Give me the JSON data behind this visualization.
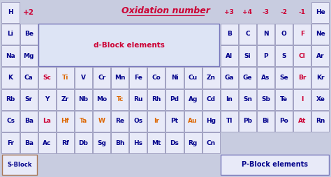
{
  "title": "Oxidation number",
  "bg_color": "#c8cce0",
  "cell_bg": "#e8eaf8",
  "cell_edge": "#9999bb",
  "title_color": "#cc0033",
  "oxidation_color": "#cc0033",
  "dark_blue": "#00008B",
  "orange": "#dd6600",
  "red_elem": "#cc0033",
  "rows": [
    [
      {
        "symbol": "H",
        "col": 0,
        "color": "#00008B"
      },
      {
        "symbol": "He",
        "col": 17,
        "color": "#00008B"
      }
    ],
    [
      {
        "symbol": "Li",
        "col": 0,
        "color": "#00008B"
      },
      {
        "symbol": "Be",
        "col": 1,
        "color": "#00008B"
      },
      {
        "symbol": "B",
        "col": 12,
        "color": "#00008B"
      },
      {
        "symbol": "C",
        "col": 13,
        "color": "#00008B"
      },
      {
        "symbol": "N",
        "col": 14,
        "color": "#00008B"
      },
      {
        "symbol": "O",
        "col": 15,
        "color": "#00008B"
      },
      {
        "symbol": "F",
        "col": 16,
        "color": "#cc0033"
      },
      {
        "symbol": "Ne",
        "col": 17,
        "color": "#00008B"
      }
    ],
    [
      {
        "symbol": "Na",
        "col": 0,
        "color": "#00008B"
      },
      {
        "symbol": "Mg",
        "col": 1,
        "color": "#00008B"
      },
      {
        "symbol": "Al",
        "col": 12,
        "color": "#00008B"
      },
      {
        "symbol": "Si",
        "col": 13,
        "color": "#00008B"
      },
      {
        "symbol": "P",
        "col": 14,
        "color": "#00008B"
      },
      {
        "symbol": "S",
        "col": 15,
        "color": "#00008B"
      },
      {
        "symbol": "Cl",
        "col": 16,
        "color": "#cc0033"
      },
      {
        "symbol": "Ar",
        "col": 17,
        "color": "#00008B"
      }
    ],
    [
      {
        "symbol": "K",
        "col": 0,
        "color": "#00008B"
      },
      {
        "symbol": "Ca",
        "col": 1,
        "color": "#00008B"
      },
      {
        "symbol": "Sc",
        "col": 2,
        "color": "#cc0033"
      },
      {
        "symbol": "Ti",
        "col": 3,
        "color": "#dd6600"
      },
      {
        "symbol": "V",
        "col": 4,
        "color": "#00008B"
      },
      {
        "symbol": "Cr",
        "col": 5,
        "color": "#00008B"
      },
      {
        "symbol": "Mn",
        "col": 6,
        "color": "#00008B"
      },
      {
        "symbol": "Fe",
        "col": 7,
        "color": "#00008B"
      },
      {
        "symbol": "Co",
        "col": 8,
        "color": "#00008B"
      },
      {
        "symbol": "Ni",
        "col": 9,
        "color": "#00008B"
      },
      {
        "symbol": "Cu",
        "col": 10,
        "color": "#00008B"
      },
      {
        "symbol": "Zn",
        "col": 11,
        "color": "#00008B"
      },
      {
        "symbol": "Ga",
        "col": 12,
        "color": "#00008B"
      },
      {
        "symbol": "Ge",
        "col": 13,
        "color": "#00008B"
      },
      {
        "symbol": "As",
        "col": 14,
        "color": "#00008B"
      },
      {
        "symbol": "Se",
        "col": 15,
        "color": "#00008B"
      },
      {
        "symbol": "Br",
        "col": 16,
        "color": "#cc0033"
      },
      {
        "symbol": "Kr",
        "col": 17,
        "color": "#00008B"
      }
    ],
    [
      {
        "symbol": "Rb",
        "col": 0,
        "color": "#00008B"
      },
      {
        "symbol": "Sr",
        "col": 1,
        "color": "#00008B"
      },
      {
        "symbol": "Y",
        "col": 2,
        "color": "#00008B"
      },
      {
        "symbol": "Zr",
        "col": 3,
        "color": "#00008B"
      },
      {
        "symbol": "Nb",
        "col": 4,
        "color": "#00008B"
      },
      {
        "symbol": "Mo",
        "col": 5,
        "color": "#00008B"
      },
      {
        "symbol": "Tc",
        "col": 6,
        "color": "#dd6600"
      },
      {
        "symbol": "Ru",
        "col": 7,
        "color": "#00008B"
      },
      {
        "symbol": "Rh",
        "col": 8,
        "color": "#00008B"
      },
      {
        "symbol": "Pd",
        "col": 9,
        "color": "#00008B"
      },
      {
        "symbol": "Ag",
        "col": 10,
        "color": "#00008B"
      },
      {
        "symbol": "Cd",
        "col": 11,
        "color": "#00008B"
      },
      {
        "symbol": "In",
        "col": 12,
        "color": "#00008B"
      },
      {
        "symbol": "Sn",
        "col": 13,
        "color": "#00008B"
      },
      {
        "symbol": "Sb",
        "col": 14,
        "color": "#00008B"
      },
      {
        "symbol": "Te",
        "col": 15,
        "color": "#00008B"
      },
      {
        "symbol": "I",
        "col": 16,
        "color": "#cc0033"
      },
      {
        "symbol": "Xe",
        "col": 17,
        "color": "#00008B"
      }
    ],
    [
      {
        "symbol": "Cs",
        "col": 0,
        "color": "#00008B"
      },
      {
        "symbol": "Ba",
        "col": 1,
        "color": "#00008B"
      },
      {
        "symbol": "La",
        "col": 2,
        "color": "#cc0033"
      },
      {
        "symbol": "Hf",
        "col": 3,
        "color": "#dd6600"
      },
      {
        "symbol": "Ta",
        "col": 4,
        "color": "#dd6600"
      },
      {
        "symbol": "W",
        "col": 5,
        "color": "#dd6600"
      },
      {
        "symbol": "Re",
        "col": 6,
        "color": "#00008B"
      },
      {
        "symbol": "Os",
        "col": 7,
        "color": "#00008B"
      },
      {
        "symbol": "Ir",
        "col": 8,
        "color": "#dd6600"
      },
      {
        "symbol": "Pt",
        "col": 9,
        "color": "#00008B"
      },
      {
        "symbol": "Au",
        "col": 10,
        "color": "#dd6600"
      },
      {
        "symbol": "Hg",
        "col": 11,
        "color": "#00008B"
      },
      {
        "symbol": "Tl",
        "col": 12,
        "color": "#00008B"
      },
      {
        "symbol": "Pb",
        "col": 13,
        "color": "#00008B"
      },
      {
        "symbol": "Bi",
        "col": 14,
        "color": "#00008B"
      },
      {
        "symbol": "Po",
        "col": 15,
        "color": "#00008B"
      },
      {
        "symbol": "At",
        "col": 16,
        "color": "#cc0033"
      },
      {
        "symbol": "Rn",
        "col": 17,
        "color": "#00008B"
      }
    ],
    [
      {
        "symbol": "Fr",
        "col": 0,
        "color": "#00008B"
      },
      {
        "symbol": "Ba",
        "col": 1,
        "color": "#00008B"
      },
      {
        "symbol": "Ac",
        "col": 2,
        "color": "#00008B"
      },
      {
        "symbol": "Rf",
        "col": 3,
        "color": "#00008B"
      },
      {
        "symbol": "Db",
        "col": 4,
        "color": "#00008B"
      },
      {
        "symbol": "Sg",
        "col": 5,
        "color": "#00008B"
      },
      {
        "symbol": "Bh",
        "col": 6,
        "color": "#00008B"
      },
      {
        "symbol": "Hs",
        "col": 7,
        "color": "#00008B"
      },
      {
        "symbol": "Mt",
        "col": 8,
        "color": "#00008B"
      },
      {
        "symbol": "Ds",
        "col": 9,
        "color": "#00008B"
      },
      {
        "symbol": "Rg",
        "col": 10,
        "color": "#00008B"
      },
      {
        "symbol": "Cn",
        "col": 11,
        "color": "#00008B"
      }
    ]
  ],
  "n_cols": 18,
  "n_rows": 8,
  "dblock_label": "d-Block elements",
  "dblock_color": "#cc0033",
  "sblock_label": "S-Block",
  "pblock_label": "P-Block elements",
  "pblock_color": "#00008B",
  "ox_right": [
    "+3",
    "+4",
    "-3",
    "-2",
    "-1"
  ],
  "ox_right_cols": [
    12,
    13,
    14,
    15,
    16
  ]
}
